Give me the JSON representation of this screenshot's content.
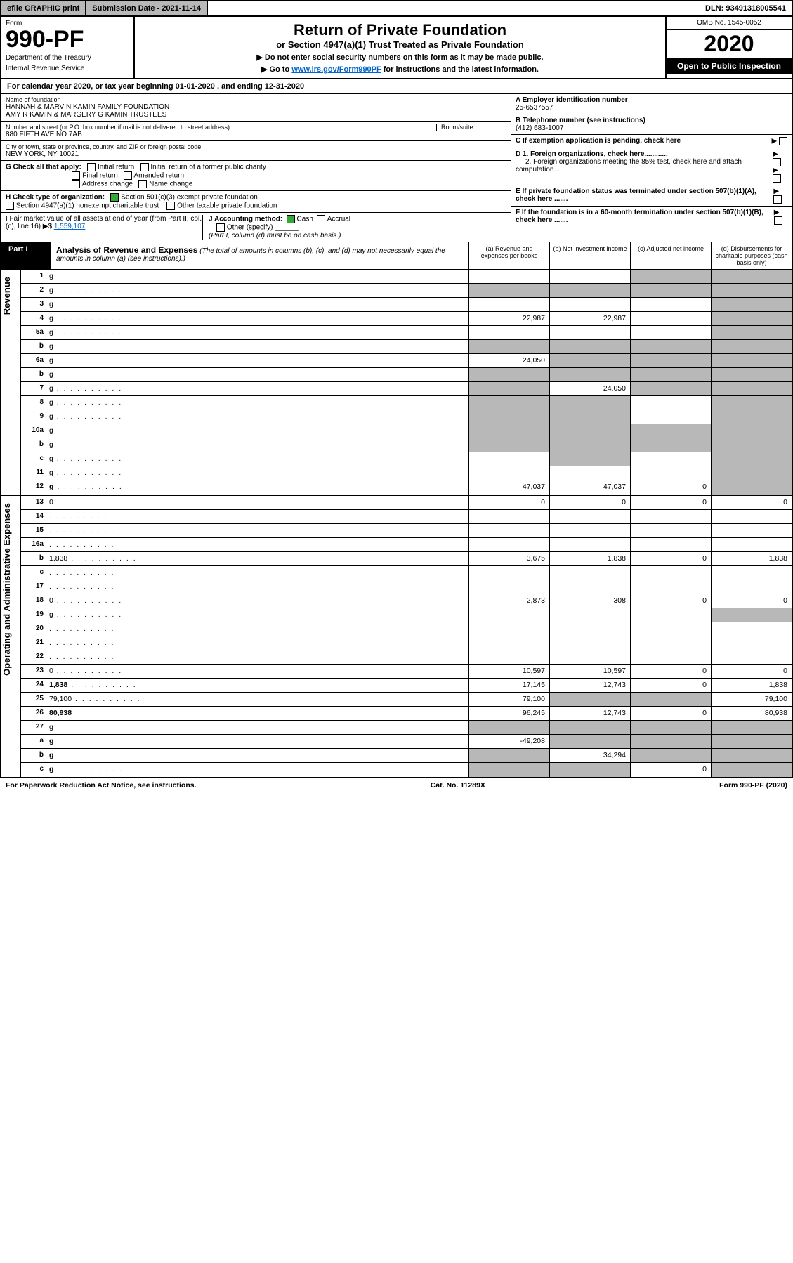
{
  "topbar": {
    "efile": "efile GRAPHIC print",
    "submission": "Submission Date - 2021-11-14",
    "dln": "DLN: 93491318005541"
  },
  "header": {
    "form_label": "Form",
    "form_num": "990-PF",
    "dept1": "Department of the Treasury",
    "dept2": "Internal Revenue Service",
    "title": "Return of Private Foundation",
    "subtitle": "or Section 4947(a)(1) Trust Treated as Private Foundation",
    "instr1": "▶ Do not enter social security numbers on this form as it may be made public.",
    "instr2_a": "▶ Go to ",
    "instr2_link": "www.irs.gov/Form990PF",
    "instr2_b": " for instructions and the latest information.",
    "omb": "OMB No. 1545-0052",
    "year": "2020",
    "open_pub": "Open to Public Inspection"
  },
  "calyear": "For calendar year 2020, or tax year beginning 01-01-2020              , and ending 12-31-2020",
  "entity": {
    "name_label": "Name of foundation",
    "name1": "HANNAH & MARVIN KAMIN FAMILY FOUNDATION",
    "name2": "AMY R KAMIN & MARGERY G KAMIN TRUSTEES",
    "addr_label": "Number and street (or P.O. box number if mail is not delivered to street address)",
    "room_label": "Room/suite",
    "addr": "880 FIFTH AVE NO 7AB",
    "city_label": "City or town, state or province, country, and ZIP or foreign postal code",
    "city": "NEW YORK, NY  10021",
    "ein_label": "A Employer identification number",
    "ein": "25-6537557",
    "phone_label": "B Telephone number (see instructions)",
    "phone": "(412) 683-1007",
    "c_label": "C If exemption application is pending, check here",
    "d1": "D 1. Foreign organizations, check here............",
    "d2": "2. Foreign organizations meeting the 85% test, check here and attach computation ...",
    "e_label": "E  If private foundation status was terminated under section 507(b)(1)(A), check here .......",
    "f_label": "F  If the foundation is in a 60-month termination under section 507(b)(1)(B), check here .......",
    "g_label": "G Check all that apply:",
    "g_initial": "Initial return",
    "g_initial_former": "Initial return of a former public charity",
    "g_final": "Final return",
    "g_amended": "Amended return",
    "g_address": "Address change",
    "g_name": "Name change",
    "h_label": "H Check type of organization:",
    "h_501c3": "Section 501(c)(3) exempt private foundation",
    "h_4947": "Section 4947(a)(1) nonexempt charitable trust",
    "h_other_tax": "Other taxable private foundation",
    "i_label": "I Fair market value of all assets at end of year (from Part II, col. (c), line 16) ▶$",
    "i_val": "1,559,107",
    "j_label": "J Accounting method:",
    "j_cash": "Cash",
    "j_accrual": "Accrual",
    "j_other": "Other (specify)",
    "j_note": "(Part I, column (d) must be on cash basis.)"
  },
  "part1": {
    "label": "Part I",
    "title": "Analysis of Revenue and Expenses",
    "note": " (The total of amounts in columns (b), (c), and (d) may not necessarily equal the amounts in column (a) (see instructions).)",
    "col_a": "(a)   Revenue and expenses per books",
    "col_b": "(b)   Net investment income",
    "col_c": "(c)   Adjusted net income",
    "col_d": "(d)   Disbursements for charitable purposes (cash basis only)"
  },
  "vert": {
    "revenue": "Revenue",
    "expenses": "Operating and Administrative Expenses"
  },
  "rows": [
    {
      "n": "1",
      "d": "g",
      "a": "",
      "b": "",
      "c": "g"
    },
    {
      "n": "2",
      "d": "g",
      "a": "g",
      "b": "g",
      "c": "g",
      "dots": true
    },
    {
      "n": "3",
      "d": "g",
      "a": "",
      "b": "",
      "c": ""
    },
    {
      "n": "4",
      "d": "g",
      "a": "22,987",
      "b": "22,987",
      "c": "",
      "dots": true
    },
    {
      "n": "5a",
      "d": "g",
      "a": "",
      "b": "",
      "c": "",
      "dots": true
    },
    {
      "n": "b",
      "d": "g",
      "a": "g",
      "b": "g",
      "c": "g"
    },
    {
      "n": "6a",
      "d": "g",
      "a": "24,050",
      "b": "g",
      "c": "g"
    },
    {
      "n": "b",
      "d": "g",
      "a": "g",
      "b": "g",
      "c": "g"
    },
    {
      "n": "7",
      "d": "g",
      "a": "g",
      "b": "24,050",
      "c": "g",
      "dots": true
    },
    {
      "n": "8",
      "d": "g",
      "a": "g",
      "b": "g",
      "c": "",
      "dots": true
    },
    {
      "n": "9",
      "d": "g",
      "a": "g",
      "b": "g",
      "c": "",
      "dots": true
    },
    {
      "n": "10a",
      "d": "g",
      "a": "g",
      "b": "g",
      "c": "g"
    },
    {
      "n": "b",
      "d": "g",
      "a": "g",
      "b": "g",
      "c": "g"
    },
    {
      "n": "c",
      "d": "g",
      "a": "",
      "b": "g",
      "c": "",
      "dots": true
    },
    {
      "n": "11",
      "d": "g",
      "a": "",
      "b": "",
      "c": "",
      "dots": true
    },
    {
      "n": "12",
      "d": "g",
      "a": "47,037",
      "b": "47,037",
      "c": "0",
      "bold": true,
      "dots": true
    }
  ],
  "exp_rows": [
    {
      "n": "13",
      "d": "0",
      "a": "0",
      "b": "0",
      "c": "0"
    },
    {
      "n": "14",
      "d": "",
      "a": "",
      "b": "",
      "c": "",
      "dots": true
    },
    {
      "n": "15",
      "d": "",
      "a": "",
      "b": "",
      "c": "",
      "dots": true
    },
    {
      "n": "16a",
      "d": "",
      "a": "",
      "b": "",
      "c": "",
      "dots": true
    },
    {
      "n": "b",
      "d": "1,838",
      "a": "3,675",
      "b": "1,838",
      "c": "0",
      "dots": true
    },
    {
      "n": "c",
      "d": "",
      "a": "",
      "b": "",
      "c": "",
      "dots": true
    },
    {
      "n": "17",
      "d": "",
      "a": "",
      "b": "",
      "c": "",
      "dots": true
    },
    {
      "n": "18",
      "d": "0",
      "a": "2,873",
      "b": "308",
      "c": "0",
      "dots": true
    },
    {
      "n": "19",
      "d": "g",
      "a": "",
      "b": "",
      "c": "",
      "dots": true
    },
    {
      "n": "20",
      "d": "",
      "a": "",
      "b": "",
      "c": "",
      "dots": true
    },
    {
      "n": "21",
      "d": "",
      "a": "",
      "b": "",
      "c": "",
      "dots": true
    },
    {
      "n": "22",
      "d": "",
      "a": "",
      "b": "",
      "c": "",
      "dots": true
    },
    {
      "n": "23",
      "d": "0",
      "a": "10,597",
      "b": "10,597",
      "c": "0",
      "dots": true
    },
    {
      "n": "24",
      "d": "1,838",
      "a": "17,145",
      "b": "12,743",
      "c": "0",
      "bold": true,
      "dots": true
    },
    {
      "n": "25",
      "d": "79,100",
      "a": "79,100",
      "b": "g",
      "c": "g",
      "dots": true
    },
    {
      "n": "26",
      "d": "80,938",
      "a": "96,245",
      "b": "12,743",
      "c": "0",
      "bold": true
    },
    {
      "n": "27",
      "d": "g",
      "a": "g",
      "b": "g",
      "c": "g"
    },
    {
      "n": "a",
      "d": "g",
      "a": "-49,208",
      "b": "g",
      "c": "g",
      "bold": true
    },
    {
      "n": "b",
      "d": "g",
      "a": "g",
      "b": "34,294",
      "c": "g",
      "bold": true
    },
    {
      "n": "c",
      "d": "g",
      "a": "g",
      "b": "g",
      "c": "0",
      "bold": true,
      "dots": true
    }
  ],
  "footer": {
    "left": "For Paperwork Reduction Act Notice, see instructions.",
    "mid": "Cat. No. 11289X",
    "right": "Form 990-PF (2020)"
  }
}
